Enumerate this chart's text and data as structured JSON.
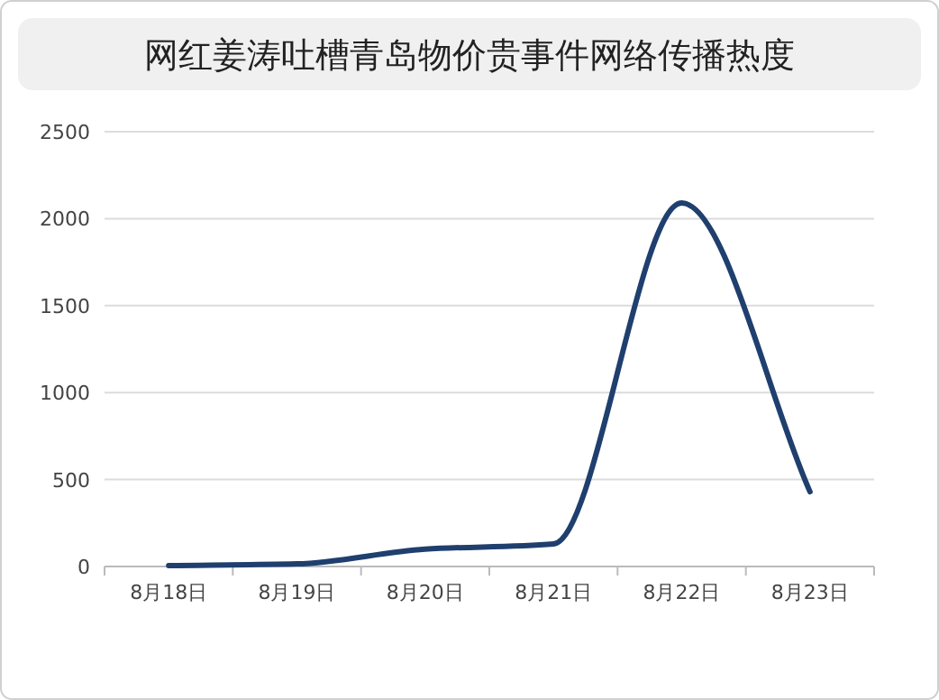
{
  "chart_data": {
    "type": "line",
    "title": "网红姜涛吐槽青岛物价贵事件网络传播热度",
    "categories": [
      "8月18日",
      "8月19日",
      "8月20日",
      "8月21日",
      "8月22日",
      "8月23日"
    ],
    "values": [
      5,
      15,
      100,
      130,
      2090,
      430
    ],
    "color": "#1f3f6e",
    "ylim": [
      0,
      2500
    ],
    "yticks": [
      0,
      500,
      1000,
      1500,
      2000,
      2500
    ],
    "grid": "y"
  }
}
